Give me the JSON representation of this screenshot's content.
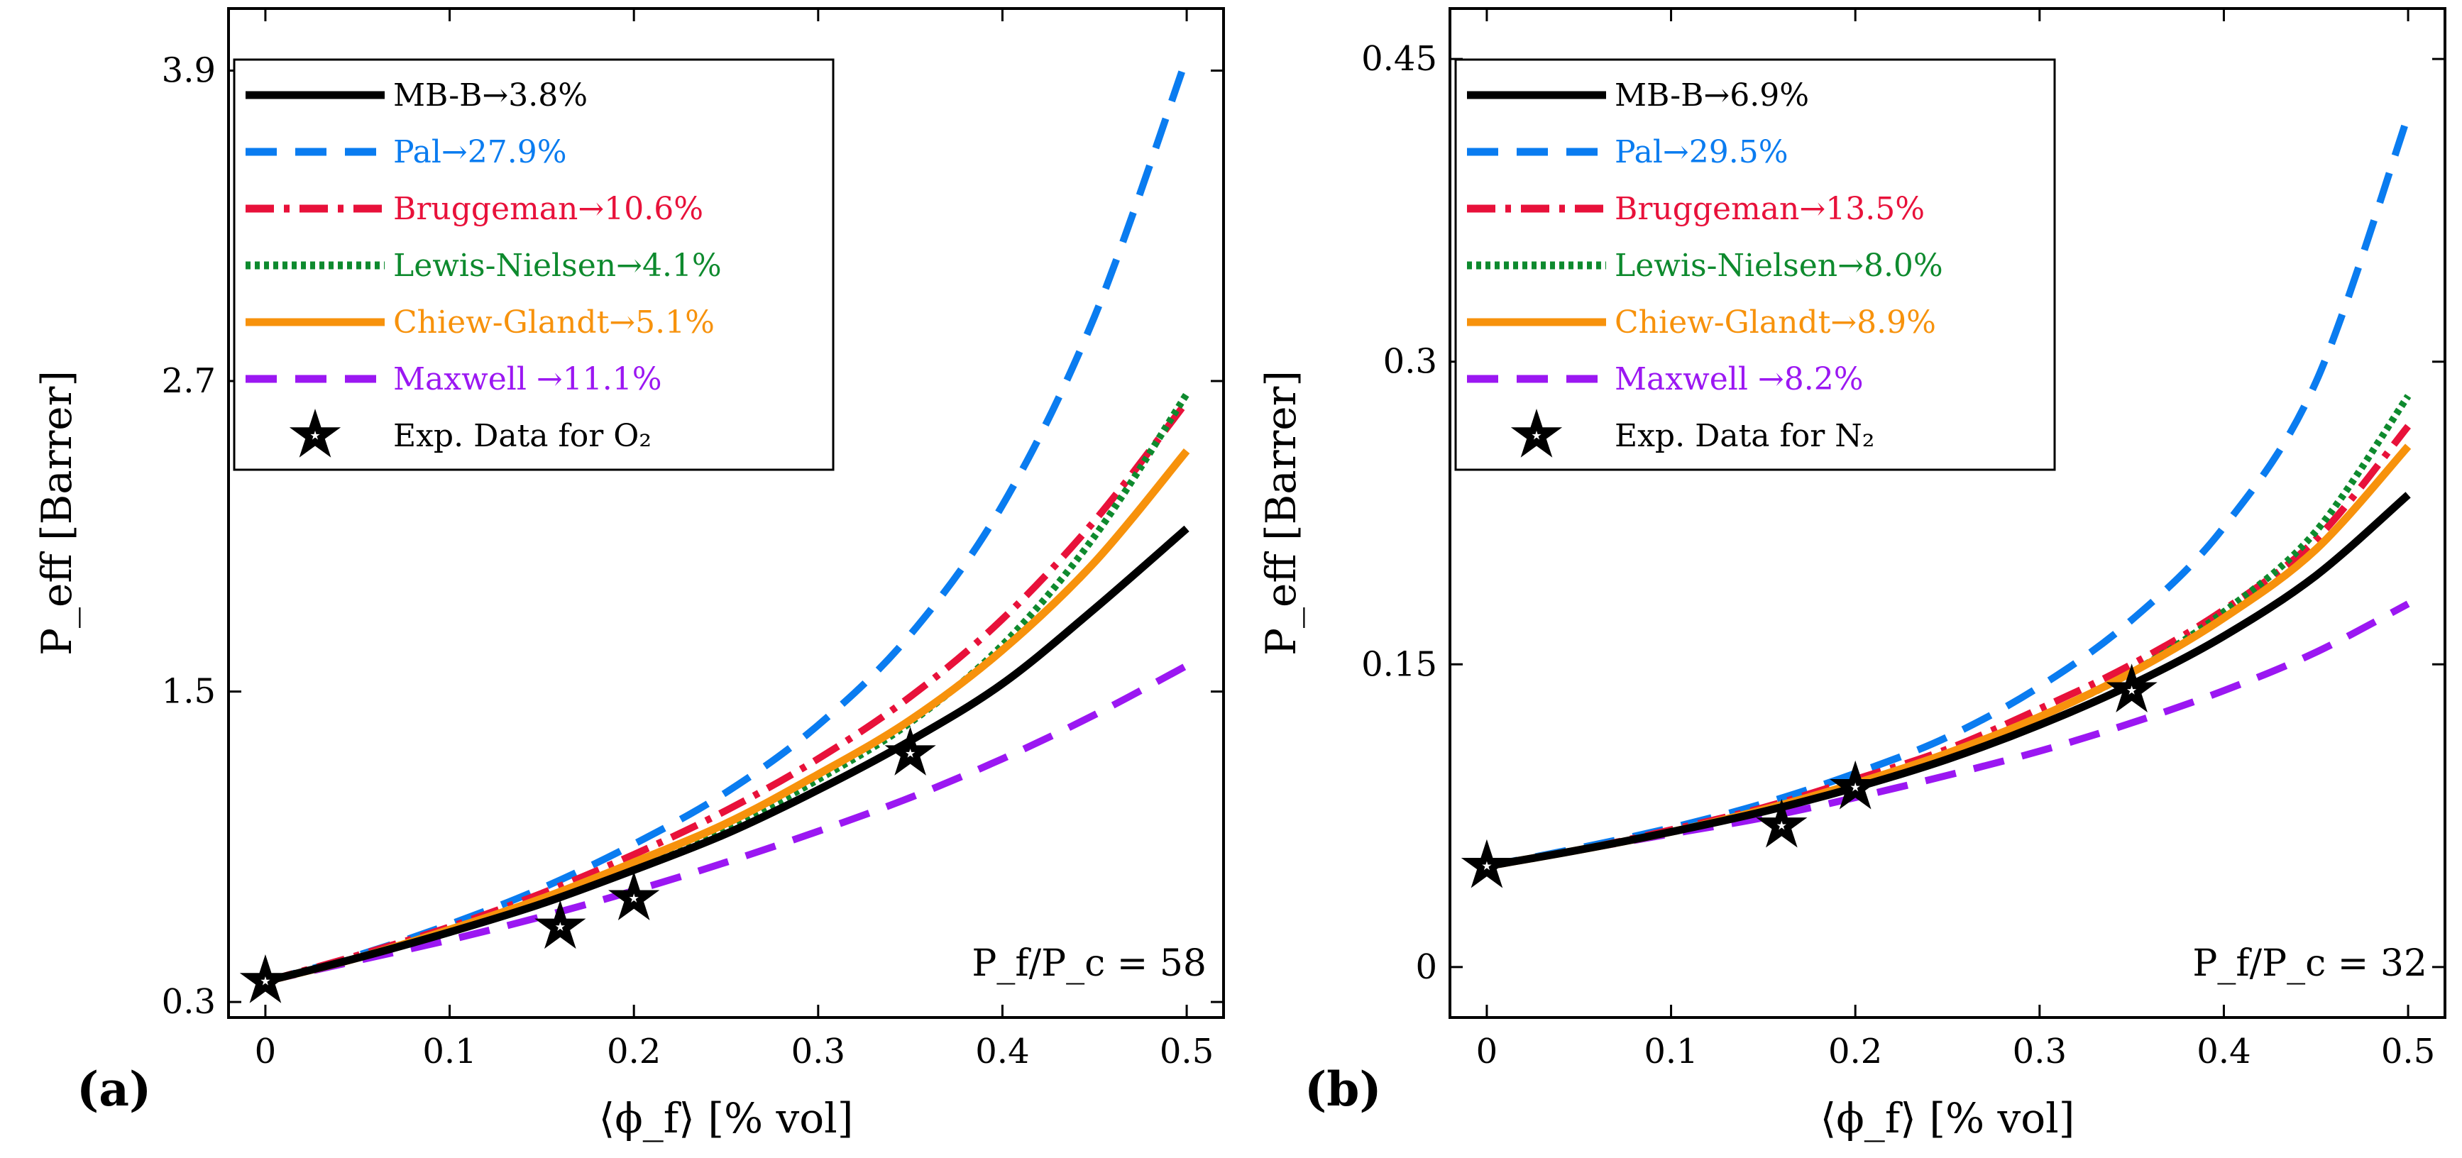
{
  "chart_data": [
    {
      "type": "line",
      "panel_label": "(a)",
      "xlabel": "⟨ϕ_f⟩ [% vol]",
      "ylabel": "P_eff [Barrer]",
      "xlim": [
        -0.02,
        0.52
      ],
      "ylim": [
        0.24,
        4.14
      ],
      "xticks": [
        0,
        0.1,
        0.2,
        0.3,
        0.4,
        0.5
      ],
      "xtick_labels": [
        "0",
        "0.1",
        "0.2",
        "0.3",
        "0.4",
        "0.5"
      ],
      "yticks": [
        0.3,
        1.5,
        2.7,
        3.9
      ],
      "ytick_labels": [
        "0.3",
        "1.5",
        "2.7",
        "3.9"
      ],
      "ratio_label": "P_f/P_c = 58",
      "legend_position": "top-left",
      "x": [
        0,
        0.05,
        0.1,
        0.15,
        0.2,
        0.25,
        0.3,
        0.35,
        0.4,
        0.45,
        0.5
      ],
      "series": [
        {
          "name": "MB-B→3.8%",
          "color": "#000000",
          "dash": "solid",
          "values": [
            0.38,
            0.47,
            0.57,
            0.68,
            0.81,
            0.95,
            1.12,
            1.31,
            1.53,
            1.82,
            2.13
          ]
        },
        {
          "name": "Pal→27.9%",
          "color": "#0A7CF0",
          "dash": "dash",
          "values": [
            0.38,
            0.48,
            0.6,
            0.74,
            0.91,
            1.11,
            1.37,
            1.72,
            2.22,
            2.95,
            3.95
          ]
        },
        {
          "name": "Bruggeman→10.6%",
          "color": "#E8113A",
          "dash": "dashdot",
          "values": [
            0.38,
            0.48,
            0.59,
            0.72,
            0.87,
            1.04,
            1.24,
            1.48,
            1.78,
            2.16,
            2.62
          ]
        },
        {
          "name": "Lewis-Nielsen→4.1%",
          "color": "#0E8A2E",
          "dash": "dot",
          "values": [
            0.38,
            0.47,
            0.57,
            0.69,
            0.82,
            0.97,
            1.16,
            1.38,
            1.68,
            2.1,
            2.65
          ]
        },
        {
          "name": "Chiew-Glandt→5.1%",
          "color": "#F7920C",
          "dash": "solid",
          "values": [
            0.38,
            0.47,
            0.58,
            0.7,
            0.84,
            0.99,
            1.18,
            1.39,
            1.66,
            2.0,
            2.43
          ]
        },
        {
          "name": "Maxwell →11.1%",
          "color": "#9B17F2",
          "dash": "dash",
          "values": [
            0.38,
            0.46,
            0.54,
            0.63,
            0.73,
            0.84,
            0.96,
            1.09,
            1.24,
            1.41,
            1.6
          ]
        }
      ],
      "experimental": {
        "name": "Exp. Data for O₂",
        "x": [
          0,
          0.16,
          0.2,
          0.35
        ],
        "y": [
          0.38,
          0.59,
          0.7,
          1.26
        ]
      }
    },
    {
      "type": "line",
      "panel_label": "(b)",
      "xlabel": "⟨ϕ_f⟩ [% vol]",
      "ylabel": "P_eff [Barrer]",
      "xlim": [
        -0.02,
        0.52
      ],
      "ylim": [
        -0.025,
        0.475
      ],
      "xticks": [
        0,
        0.1,
        0.2,
        0.3,
        0.4,
        0.5
      ],
      "xtick_labels": [
        "0",
        "0.1",
        "0.2",
        "0.3",
        "0.4",
        "0.5"
      ],
      "yticks": [
        0,
        0.15,
        0.3,
        0.45
      ],
      "ytick_labels": [
        "0",
        "0.15",
        "0.3",
        "0.45"
      ],
      "ratio_label": "P_f/P_c = 32",
      "legend_position": "top-left",
      "x": [
        0,
        0.05,
        0.1,
        0.15,
        0.2,
        0.25,
        0.3,
        0.35,
        0.4,
        0.45,
        0.5
      ],
      "series": [
        {
          "name": "MB-B→6.9%",
          "color": "#000000",
          "dash": "solid",
          "values": [
            0.05,
            0.058,
            0.067,
            0.077,
            0.089,
            0.103,
            0.12,
            0.14,
            0.164,
            0.194,
            0.234
          ]
        },
        {
          "name": "Pal→29.5%",
          "color": "#0A7CF0",
          "dash": "dash",
          "values": [
            0.05,
            0.059,
            0.069,
            0.081,
            0.096,
            0.114,
            0.139,
            0.172,
            0.218,
            0.29,
            0.422
          ]
        },
        {
          "name": "Bruggeman→13.5%",
          "color": "#E8113A",
          "dash": "dashdot",
          "values": [
            0.05,
            0.058,
            0.068,
            0.079,
            0.093,
            0.108,
            0.128,
            0.15,
            0.177,
            0.212,
            0.268
          ]
        },
        {
          "name": "Lewis-Nielsen→8.0%",
          "color": "#0E8A2E",
          "dash": "dot",
          "values": [
            0.05,
            0.058,
            0.067,
            0.078,
            0.091,
            0.106,
            0.124,
            0.146,
            0.176,
            0.216,
            0.283
          ]
        },
        {
          "name": "Chiew-Glandt→8.9%",
          "color": "#F7920C",
          "dash": "solid",
          "values": [
            0.05,
            0.058,
            0.067,
            0.078,
            0.091,
            0.106,
            0.124,
            0.146,
            0.173,
            0.207,
            0.258
          ]
        },
        {
          "name": "Maxwell →8.2%",
          "color": "#9B17F2",
          "dash": "dash",
          "values": [
            0.05,
            0.058,
            0.066,
            0.074,
            0.084,
            0.095,
            0.107,
            0.121,
            0.137,
            0.156,
            0.18
          ]
        }
      ],
      "experimental": {
        "name": "Exp. Data for N₂",
        "x": [
          0,
          0.16,
          0.2,
          0.35
        ],
        "y": [
          0.05,
          0.07,
          0.089,
          0.137
        ]
      }
    }
  ]
}
